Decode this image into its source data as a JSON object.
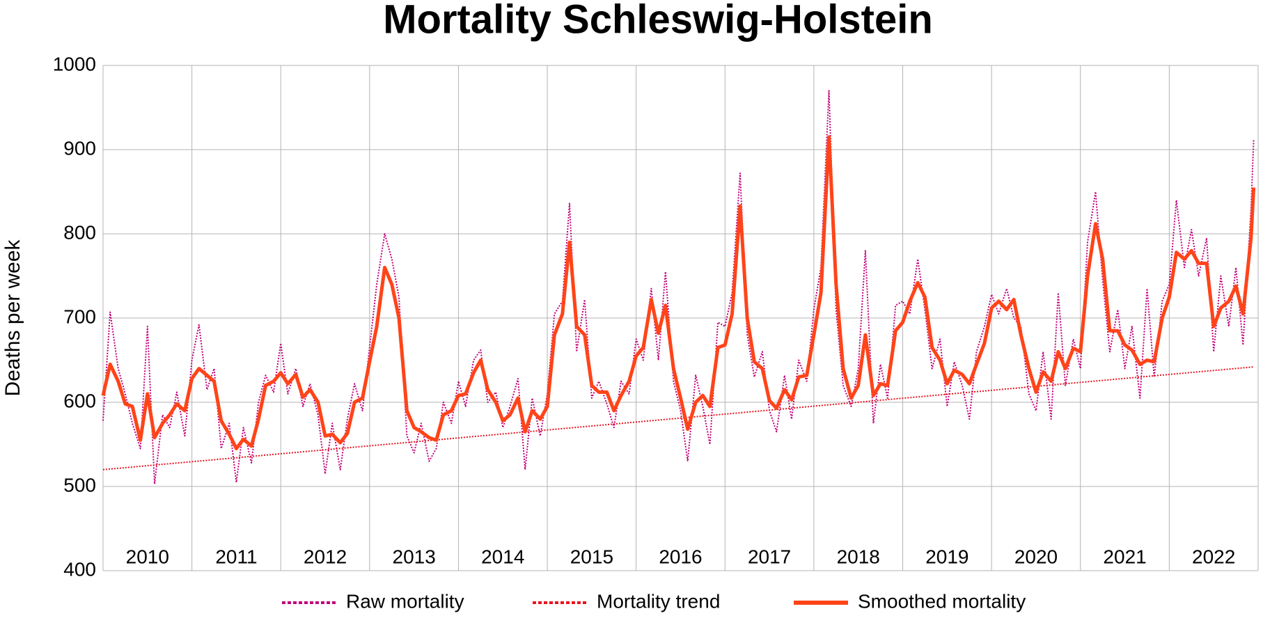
{
  "chart_data": {
    "type": "line",
    "title": "Mortality Schleswig-Holstein",
    "ylabel": "Deaths per week",
    "xlim": [
      2010,
      2023
    ],
    "ylim": [
      400,
      1000
    ],
    "yticks": [
      400,
      500,
      600,
      700,
      800,
      900,
      1000
    ],
    "xticks": [
      {
        "value": 2010.5,
        "label": "2010"
      },
      {
        "value": 2011.5,
        "label": "2011"
      },
      {
        "value": 2012.5,
        "label": "2012"
      },
      {
        "value": 2013.5,
        "label": "2013"
      },
      {
        "value": 2014.5,
        "label": "2014"
      },
      {
        "value": 2015.5,
        "label": "2015"
      },
      {
        "value": 2016.5,
        "label": "2016"
      },
      {
        "value": 2017.5,
        "label": "2017"
      },
      {
        "value": 2018.5,
        "label": "2018"
      },
      {
        "value": 2019.5,
        "label": "2019"
      },
      {
        "value": 2020.5,
        "label": "2020"
      },
      {
        "value": 2021.5,
        "label": "2021"
      },
      {
        "value": 2022.5,
        "label": "2022"
      }
    ],
    "grid": true,
    "series": [
      {
        "name": "Raw mortality",
        "color": "#c0007a",
        "style": "dotted",
        "width": 2,
        "values": [
          578,
          707,
          640,
          610,
          575,
          545,
          690,
          503,
          585,
          570,
          612,
          560,
          650,
          692,
          615,
          640,
          545,
          575,
          505,
          570,
          528,
          600,
          632,
          612,
          670,
          610,
          640,
          595,
          622,
          585,
          515,
          575,
          520,
          580,
          622,
          590,
          665,
          740,
          800,
          770,
          725,
          560,
          540,
          575,
          530,
          545,
          600,
          575,
          625,
          595,
          650,
          662,
          600,
          612,
          570,
          595,
          628,
          520,
          605,
          560,
          610,
          705,
          720,
          836,
          660,
          722,
          605,
          625,
          598,
          570,
          625,
          610,
          675,
          650,
          735,
          650,
          755,
          625,
          590,
          530,
          632,
          595,
          550,
          695,
          690,
          730,
          872,
          680,
          630,
          660,
          590,
          565,
          632,
          580,
          650,
          625,
          710,
          760,
          970,
          710,
          620,
          595,
          640,
          780,
          575,
          645,
          605,
          715,
          720,
          705,
          770,
          710,
          640,
          675,
          595,
          648,
          620,
          580,
          660,
          690,
          728,
          705,
          735,
          700,
          690,
          610,
          590,
          660,
          580,
          730,
          620,
          675,
          640,
          790,
          850,
          745,
          660,
          710,
          640,
          690,
          605,
          735,
          630,
          720,
          740,
          840,
          760,
          805,
          750,
          795,
          660,
          750,
          690,
          760,
          668,
          830,
          912
        ]
      },
      {
        "name": "Mortality trend",
        "color": "#e8141e",
        "style": "dotted",
        "width": 2,
        "x": [
          2010,
          2022.95
        ],
        "values": [
          520,
          642
        ]
      },
      {
        "name": "Smoothed mortality",
        "color": "#ff4419",
        "style": "solid",
        "width": 5,
        "values": [
          608,
          645,
          625,
          598,
          595,
          555,
          610,
          558,
          575,
          585,
          598,
          590,
          628,
          640,
          632,
          625,
          578,
          562,
          545,
          556,
          548,
          580,
          620,
          625,
          635,
          622,
          633,
          606,
          615,
          600,
          560,
          562,
          552,
          563,
          600,
          605,
          648,
          690,
          760,
          740,
          700,
          590,
          570,
          565,
          558,
          555,
          585,
          590,
          608,
          610,
          635,
          650,
          615,
          600,
          578,
          585,
          605,
          565,
          590,
          580,
          595,
          680,
          705,
          790,
          690,
          680,
          620,
          612,
          612,
          590,
          608,
          625,
          655,
          665,
          722,
          682,
          715,
          640,
          605,
          568,
          600,
          608,
          595,
          665,
          668,
          705,
          833,
          700,
          648,
          640,
          602,
          593,
          615,
          603,
          630,
          632,
          680,
          730,
          915,
          740,
          640,
          605,
          620,
          680,
          608,
          622,
          620,
          685,
          695,
          720,
          742,
          725,
          665,
          650,
          622,
          638,
          633,
          622,
          645,
          670,
          712,
          720,
          710,
          722,
          680,
          640,
          612,
          636,
          625,
          660,
          640,
          664,
          660,
          750,
          812,
          770,
          685,
          685,
          668,
          662,
          645,
          650,
          648,
          700,
          725,
          778,
          770,
          780,
          765,
          765,
          690,
          712,
          720,
          738,
          705,
          795,
          855
        ]
      }
    ],
    "x": [
      2010,
      2010.08,
      2010.17,
      2010.25,
      2010.33,
      2010.42,
      2010.5,
      2010.58,
      2010.67,
      2010.75,
      2010.83,
      2010.92,
      2011,
      2011.08,
      2011.17,
      2011.25,
      2011.33,
      2011.42,
      2011.5,
      2011.58,
      2011.67,
      2011.75,
      2011.83,
      2011.92,
      2012,
      2012.08,
      2012.17,
      2012.25,
      2012.33,
      2012.42,
      2012.5,
      2012.58,
      2012.67,
      2012.75,
      2012.83,
      2012.92,
      2013,
      2013.08,
      2013.17,
      2013.25,
      2013.33,
      2013.42,
      2013.5,
      2013.58,
      2013.67,
      2013.75,
      2013.83,
      2013.92,
      2014,
      2014.08,
      2014.17,
      2014.25,
      2014.33,
      2014.42,
      2014.5,
      2014.58,
      2014.67,
      2014.75,
      2014.83,
      2014.92,
      2015,
      2015.08,
      2015.17,
      2015.25,
      2015.33,
      2015.42,
      2015.5,
      2015.58,
      2015.67,
      2015.75,
      2015.83,
      2015.92,
      2016,
      2016.08,
      2016.17,
      2016.25,
      2016.33,
      2016.42,
      2016.5,
      2016.58,
      2016.67,
      2016.75,
      2016.83,
      2016.92,
      2017,
      2017.08,
      2017.17,
      2017.25,
      2017.33,
      2017.42,
      2017.5,
      2017.58,
      2017.67,
      2017.75,
      2017.83,
      2017.92,
      2018,
      2018.08,
      2018.17,
      2018.25,
      2018.33,
      2018.42,
      2018.5,
      2018.58,
      2018.67,
      2018.75,
      2018.83,
      2018.92,
      2019,
      2019.08,
      2019.17,
      2019.25,
      2019.33,
      2019.42,
      2019.5,
      2019.58,
      2019.67,
      2019.75,
      2019.83,
      2019.92,
      2020,
      2020.08,
      2020.17,
      2020.25,
      2020.33,
      2020.42,
      2020.5,
      2020.58,
      2020.67,
      2020.75,
      2020.83,
      2020.92,
      2021,
      2021.08,
      2021.17,
      2021.25,
      2021.33,
      2021.42,
      2021.5,
      2021.58,
      2021.67,
      2021.75,
      2021.83,
      2021.92,
      2022,
      2022.08,
      2022.17,
      2022.25,
      2022.33,
      2022.42,
      2022.5,
      2022.58,
      2022.67,
      2022.75,
      2022.83,
      2022.92,
      2022.95
    ]
  }
}
